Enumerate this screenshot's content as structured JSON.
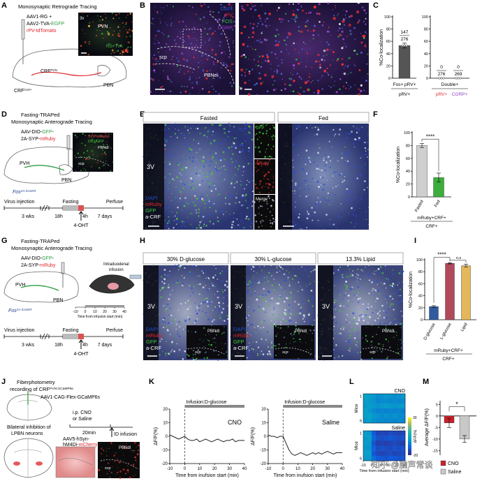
{
  "panel_labels": [
    "A",
    "B",
    "C",
    "D",
    "E",
    "F",
    "G",
    "H",
    "I",
    "J",
    "K",
    "L",
    "M"
  ],
  "A": {
    "title": "Monosynaptic Retrograde Tracing",
    "virus": [
      "AAV1-RG +",
      "AAV2-TVA-",
      "EGFP",
      "rPV-tdTomato"
    ],
    "inset": [
      "3v",
      "PVN",
      "RG+TVA",
      "rPV"
    ],
    "crf": "CRF",
    "crf_sup": "PVN",
    "pbn": "PBN",
    "crf2": "CRF",
    "crf2_sup": "Cre/+"
  },
  "B": {
    "legend": [
      "DAPI",
      "rPV",
      "FOS",
      "CGRP"
    ],
    "scp": "scp",
    "pbnel": "PBNel"
  },
  "D": {
    "title1": "Fasting-TRAPed",
    "title2": "Monosynaptic Anterograde Tracing",
    "virus": [
      "AAV-DIO-",
      "GFP",
      "-",
      "2A-SYP-",
      "mRuby"
    ],
    "pvh": "PVH",
    "pbn": "PBN",
    "fos": "Fos",
    "fos_sup": "2A-iCreER",
    "inset": [
      "SYP-mRuby",
      "DIO-GFP",
      "PBNdl",
      "scp"
    ],
    "timeline": [
      "Virus injection",
      "3 wks",
      "18h",
      "Fasting",
      "4h",
      "7 days",
      "Perfuse",
      "4-OHT"
    ]
  },
  "E": {
    "headers": [
      "Fasted",
      "Fed"
    ],
    "v3": "3V",
    "legend": [
      "DAPI",
      "mRuby",
      "GFP",
      "a-CRF"
    ],
    "insets": [
      "GFP",
      "mRuby",
      "Merge"
    ]
  },
  "G": {
    "title1": "Fasting-TRAPed",
    "title2": "Monosynaptic Anterograde Tracing",
    "virus": [
      "AAV-DIO-",
      "GFP",
      "-",
      "2A-SYP-",
      "mRuby"
    ],
    "pvh": "PVH",
    "pbn": "PBN",
    "infusion": [
      "Intraduodenal",
      "infusion"
    ],
    "fos": "Fos",
    "fos_sup": "2A-iCreER",
    "scale_ticks": [
      -10,
      0,
      10,
      20,
      30,
      40
    ],
    "scale_label": "Time from infusion start (min)",
    "timeline": [
      "Virus injection",
      "3 wks",
      "18h",
      "Fasting",
      "4h",
      "7 days",
      "Perfuse",
      "4-OHT"
    ]
  },
  "H": {
    "headers": [
      "30% D-glucose",
      "30% L-glucose",
      "13.3% Lipid"
    ],
    "v3": [
      "3V",
      "3V",
      "3V"
    ],
    "legends": [
      [
        "DAPI",
        "mRuby",
        "GFP",
        "a-CRF"
      ],
      [
        "DAPI",
        "mRuby",
        "GFP",
        "a-CRF"
      ]
    ],
    "insets": [
      [
        "PBNdl",
        "scp"
      ],
      [
        "PBNdl",
        "scp"
      ],
      [
        "PBNdl",
        "scp"
      ]
    ]
  },
  "J": {
    "title1": "Fiberphotometry",
    "title2": "recording of CRF",
    "title2_sup": "PVN:GCaMP6s",
    "virus": "AAV1-CAG-Flex-GCaMP6s",
    "ip": [
      "i.p. CNO",
      "or Saline"
    ],
    "time": "20min",
    "infusion": "ID infusion",
    "bilateral": [
      "Bilateral inhibition of",
      "LPBN neurons"
    ],
    "virus2": [
      "AAV5-hSyn-",
      "hM4Di-",
      "mCherry"
    ],
    "inset": [
      "PBNdl",
      "scp"
    ]
  },
  "watermark": "知乎 @脑声常谈",
  "chart_data": [
    {
      "type": "bar",
      "ylabel": "%Co-localization",
      "categories": [
        "Fos+ pRV+"
      ],
      "group": "pRV+",
      "values": [
        53
      ],
      "errors": [
        4
      ],
      "numerators": [
        147
      ],
      "denominators": [
        276
      ],
      "colors": [
        "#555555"
      ],
      "ylim": [
        0,
        100
      ],
      "yticks": [
        0,
        20,
        40,
        60,
        80,
        100
      ]
    },
    {
      "type": "bar",
      "categories": [
        "pRV+",
        "CGRP+"
      ],
      "group": "Double+",
      "values": [
        0,
        0
      ],
      "numerators": [
        0,
        0
      ],
      "denominators": [
        276,
        269
      ],
      "colors": [
        "#e0262b",
        "#8e3fbf"
      ],
      "ylim": [
        0,
        100
      ],
      "yticks": [
        0,
        20,
        40,
        60,
        80,
        100
      ]
    },
    {
      "type": "bar",
      "ylabel": "%Co-localization",
      "categories": [
        "Fasted",
        "Fed"
      ],
      "values": [
        80,
        30
      ],
      "errors": [
        3,
        7
      ],
      "colors": [
        "#cfcfcf",
        "#3cae3c"
      ],
      "ylim": [
        0,
        100
      ],
      "yticks": [
        0,
        20,
        40,
        60,
        80,
        100
      ],
      "significance": [
        "****"
      ],
      "xlabel": [
        "mRuby+CRF+",
        "CRF+"
      ]
    },
    {
      "type": "bar",
      "ylabel": "%Co-localization",
      "categories": [
        "D-glucose",
        "L-glucose",
        "Lipid"
      ],
      "values": [
        22,
        94,
        90
      ],
      "errors": [
        1.5,
        1,
        2.5
      ],
      "colors": [
        "#2f5c9e",
        "#b04a5a",
        "#e3b75c"
      ],
      "ylim": [
        0,
        100
      ],
      "yticks": [
        0,
        20,
        40,
        60,
        80,
        100
      ],
      "significance": [
        "****",
        "n.s"
      ],
      "xlabel": [
        "mRuby+CRF+",
        "CRF+"
      ]
    },
    {
      "type": "bar",
      "ylabel": "Average ΔF/F(%)",
      "categories": [
        "CNO",
        "Saline"
      ],
      "values": [
        -3,
        -10
      ],
      "errors": [
        2,
        1.5
      ],
      "colors": [
        "#c8202a",
        "#c8c8c8"
      ],
      "ylim": [
        -17,
        6
      ],
      "yticks": [
        -15,
        -10,
        -5,
        0,
        5
      ],
      "significance": [
        "*"
      ]
    },
    {
      "type": "line",
      "label": "CNO",
      "annotation": "Infusion:D-glucose",
      "infusion": [
        0,
        40
      ],
      "xlabel": "Time from inufsion start (min)",
      "ylabel": "ΔF/F(%)",
      "x": [
        -10,
        -8,
        -6,
        -4,
        -2,
        0,
        2,
        4,
        6,
        8,
        10,
        12,
        14,
        16,
        18,
        20,
        22,
        24,
        26,
        28,
        30,
        32,
        34,
        36,
        38,
        40
      ],
      "values": [
        1,
        0,
        -1,
        -2,
        -1,
        0,
        -2,
        -3,
        -3,
        -2,
        -4,
        -3,
        -2,
        -3,
        -4,
        -3,
        -2,
        -3,
        -4,
        -3,
        -3,
        -2,
        -4,
        -3,
        -3,
        -3
      ],
      "color": "#222222",
      "xlim": [
        -10,
        40
      ],
      "xticks": [
        -10,
        0,
        10,
        20,
        30,
        40
      ],
      "ylim": [
        -20,
        20
      ],
      "yticks": [
        -20,
        -10,
        0,
        10,
        20
      ]
    },
    {
      "type": "line",
      "label": "Saline",
      "annotation": "Infusion:D-glucose",
      "infusion": [
        0,
        40
      ],
      "xlabel": "Time from inufsion start (min)",
      "ylabel": "ΔF/F(%)",
      "x": [
        -10,
        -8,
        -6,
        -4,
        -2,
        0,
        2,
        4,
        6,
        8,
        10,
        12,
        14,
        16,
        18,
        20,
        22,
        24,
        26,
        28,
        30,
        32,
        34,
        36,
        38,
        40
      ],
      "values": [
        1,
        0,
        0,
        -1,
        0,
        0,
        -5,
        -10,
        -13,
        -14,
        -13,
        -12,
        -13,
        -14,
        -13,
        -12,
        -13,
        -12,
        -13,
        -12,
        -11,
        -12,
        -13,
        -12,
        -12,
        -12
      ],
      "color": "#222222",
      "xlim": [
        -10,
        40
      ],
      "xticks": [
        -10,
        0,
        10,
        20,
        30,
        40
      ],
      "ylim": [
        -20,
        20
      ],
      "yticks": [
        -20,
        -10,
        0,
        10,
        20
      ]
    },
    {
      "type": "heatmap",
      "label": "CNO",
      "ylabel": "Mice",
      "x": [
        -7.5,
        -2.5,
        2.5,
        7.5,
        12.5,
        17.5,
        22.5,
        27.5,
        32.5,
        37.5
      ],
      "xlim": [
        -10,
        40
      ],
      "clim": [
        -20,
        30
      ],
      "yticks": [
        1,
        6
      ],
      "z": [
        [
          2,
          1,
          0,
          -2,
          -1,
          0,
          -1,
          -2,
          -1,
          0
        ],
        [
          1,
          0,
          -1,
          -3,
          -2,
          -2,
          -3,
          -2,
          -3,
          -2
        ],
        [
          0,
          1,
          0,
          -1,
          0,
          1,
          0,
          -1,
          0,
          1
        ],
        [
          2,
          0,
          -2,
          -4,
          -3,
          -4,
          -3,
          -4,
          -3,
          -4
        ],
        [
          1,
          2,
          0,
          -1,
          -2,
          -1,
          -2,
          -1,
          -2,
          -2
        ],
        [
          0,
          1,
          -1,
          -2,
          -2,
          -3,
          -2,
          -3,
          -2,
          -3
        ]
      ]
    },
    {
      "type": "heatmap",
      "label": "Saline",
      "ylabel": "Mice",
      "xlabel": "Time from infusion start (min)",
      "x": [
        -7.5,
        -2.5,
        2.5,
        7.5,
        12.5,
        17.5,
        22.5,
        27.5,
        32.5,
        37.5
      ],
      "xlim": [
        -10,
        40
      ],
      "xticks": [
        -10,
        0,
        10,
        20,
        30,
        40
      ],
      "clim": [
        -20,
        30
      ],
      "cticks": [
        -20,
        30
      ],
      "clabel": "ΔF/F(%)",
      "yticks": [
        1,
        6
      ],
      "z": [
        [
          1,
          0,
          -10,
          -15,
          -14,
          -15,
          -13,
          -14,
          -15,
          -14
        ],
        [
          0,
          1,
          -8,
          -12,
          -13,
          -12,
          -11,
          -12,
          -13,
          -12
        ],
        [
          1,
          0,
          -12,
          -16,
          -15,
          -16,
          -15,
          -14,
          -15,
          -16
        ],
        [
          0,
          -1,
          -9,
          -13,
          -12,
          -13,
          -14,
          -12,
          -13,
          -12
        ],
        [
          1,
          1,
          -11,
          -14,
          -15,
          -14,
          -13,
          -15,
          -14,
          -13
        ],
        [
          0,
          0,
          -7,
          -10,
          -11,
          -12,
          -10,
          -11,
          -12,
          -11
        ]
      ]
    }
  ]
}
